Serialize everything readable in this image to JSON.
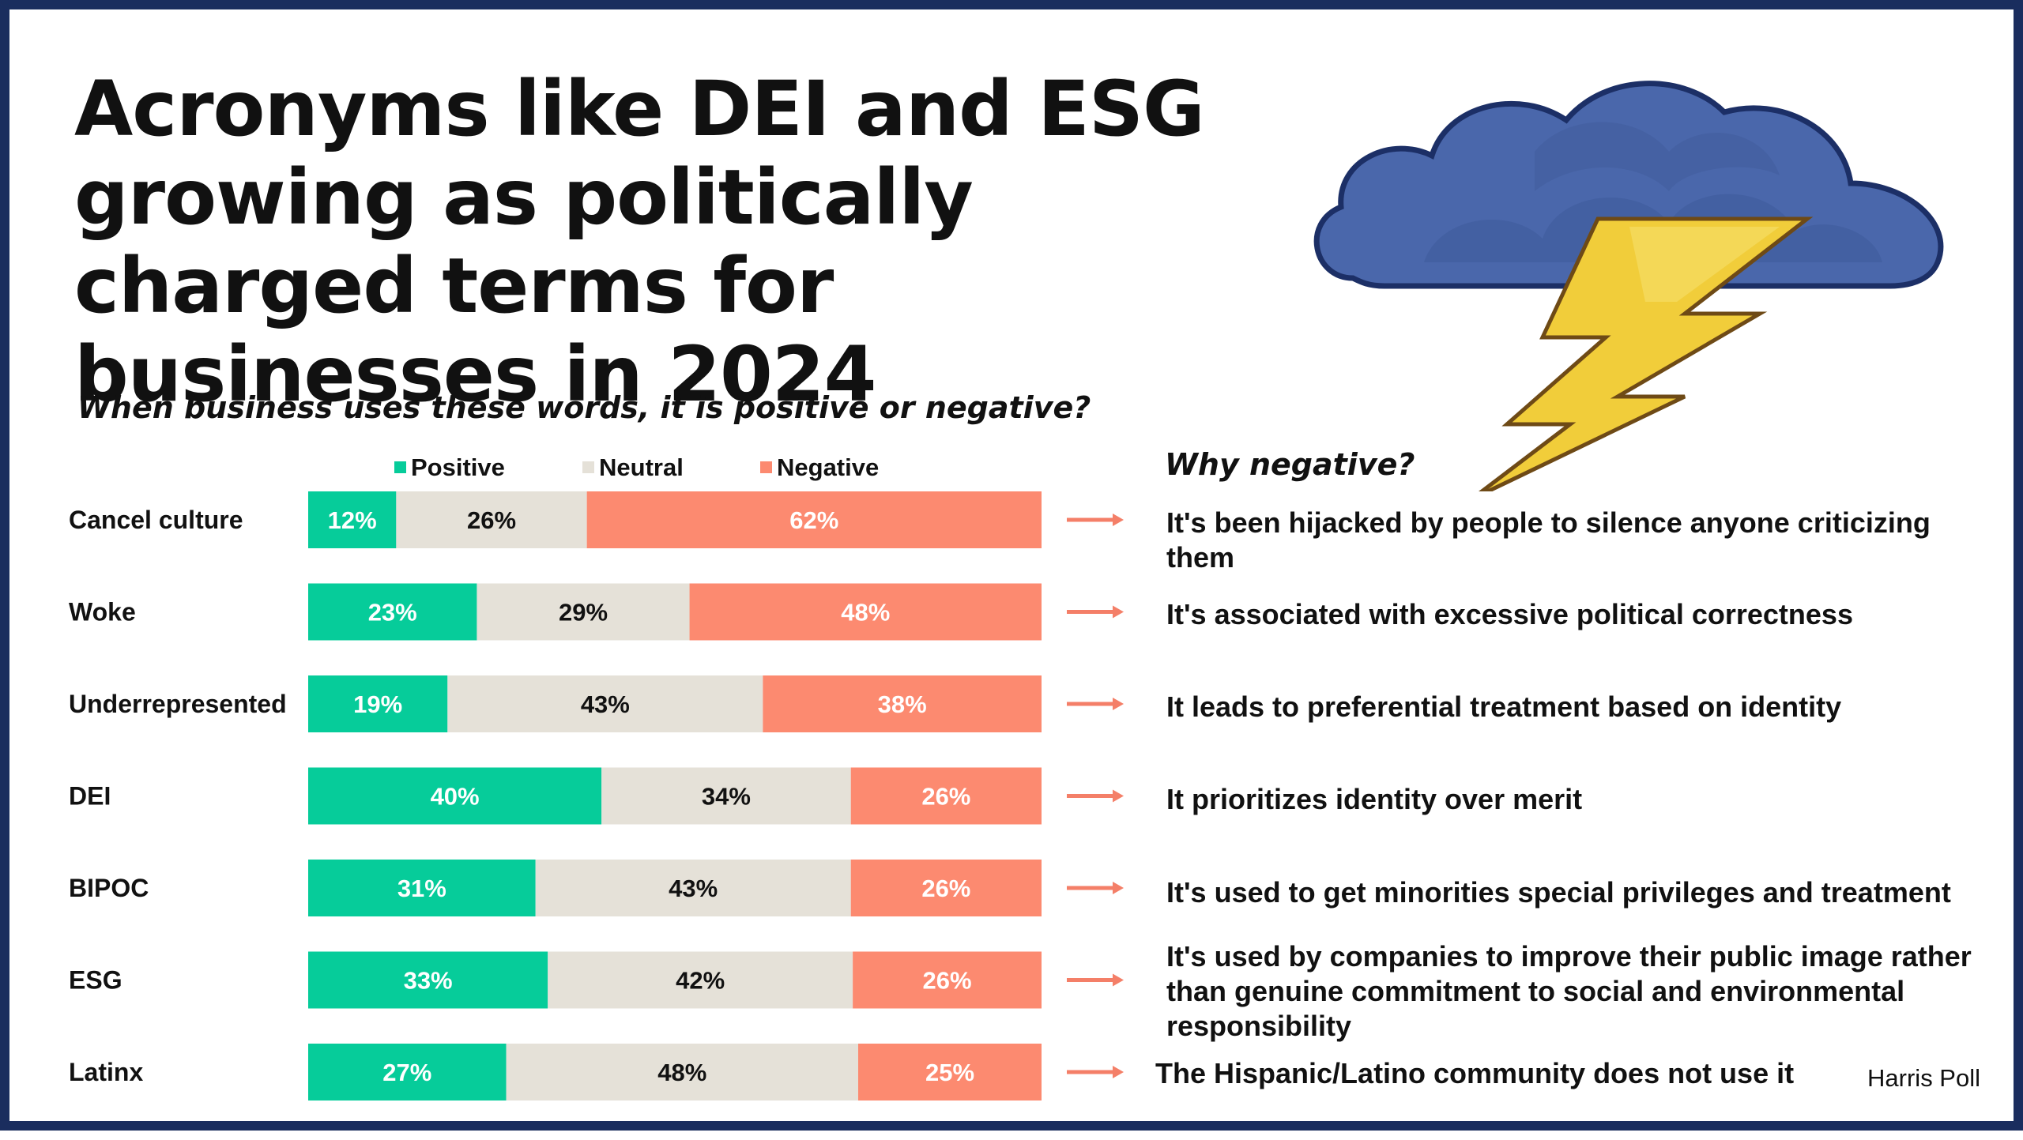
{
  "title": "Acronyms like DEI and ESG growing as politically charged terms for businesses in 2024",
  "subtitle": "When business uses these words, it is positive or negative?",
  "why_heading": "Why negative?",
  "source": "Harris Poll",
  "legend": {
    "positive": "Positive",
    "neutral": "Neutral",
    "negative": "Negative"
  },
  "colors": {
    "positive": "#06cc9a",
    "neutral": "#e5e1d8",
    "negative": "#fc8a70",
    "arrow": "#f47f68",
    "border": "#1a2d5e",
    "cloud": "#4a67ab",
    "bolt": "#f1cd3a"
  },
  "icons": {
    "storm": "storm-cloud-lightning-icon"
  },
  "chart_data": {
    "type": "bar",
    "orientation": "horizontal",
    "stacked": true,
    "percent": true,
    "categories": [
      "Cancel culture",
      "Woke",
      "Underrepresented",
      "DEI",
      "BIPOC",
      "ESG",
      "Latinx"
    ],
    "series": [
      {
        "name": "Positive",
        "values": [
          12,
          23,
          19,
          40,
          31,
          33,
          27
        ],
        "labels": [
          "12%",
          "23%",
          "19%",
          "40%",
          "31%",
          "33%",
          "27%"
        ]
      },
      {
        "name": "Neutral",
        "values": [
          26,
          29,
          43,
          34,
          43,
          42,
          48
        ],
        "labels": [
          "26%",
          "29%",
          "43%",
          "34%",
          "43%",
          "42%",
          "48%"
        ]
      },
      {
        "name": "Negative",
        "values": [
          62,
          48,
          38,
          26,
          26,
          26,
          25
        ],
        "labels": [
          "62%",
          "48%",
          "38%",
          "26%",
          "26%",
          "26%",
          "25%"
        ]
      }
    ],
    "legend_position": "top",
    "grid": false
  },
  "reasons": [
    "It's been hijacked by people to silence anyone criticizing them",
    "It's associated with excessive political correctness",
    "It leads to preferential treatment based on identity",
    "It prioritizes identity over merit",
    "It's used to get minorities special privileges and treatment",
    "It's used by companies to improve their public image rather than genuine commitment to social and environmental responsibility",
    "The Hispanic/Latino community does not use it"
  ]
}
